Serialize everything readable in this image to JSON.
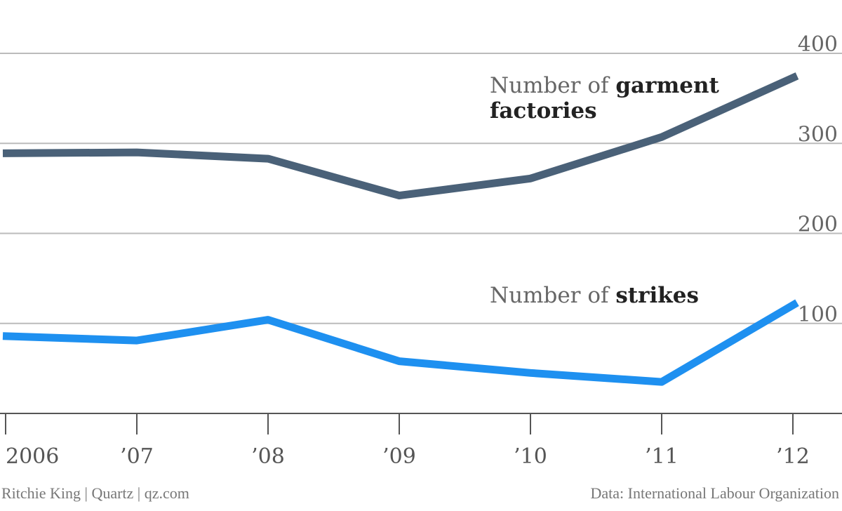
{
  "chart_data": {
    "type": "line",
    "x": [
      "2006",
      "2007",
      "2008",
      "2009",
      "2010",
      "2011",
      "2012"
    ],
    "x_tick_labels": [
      "2006",
      "’07",
      "’08",
      "’09",
      "’10",
      "’11",
      "’12"
    ],
    "series": [
      {
        "name": "garment factories",
        "label_prefix": "Number of",
        "label_strong": "garment factories",
        "color": "#4a6178",
        "values": [
          289,
          290,
          283,
          242,
          261,
          307,
          375
        ]
      },
      {
        "name": "strikes",
        "label_prefix": "Number of",
        "label_strong": "strikes",
        "color": "#1e90f0",
        "values": [
          86,
          81,
          104,
          58,
          45,
          35,
          123
        ]
      }
    ],
    "ylim": [
      0,
      400
    ],
    "y_ticks": [
      100,
      200,
      300,
      400
    ],
    "grid": true,
    "title": "",
    "xlabel": "",
    "ylabel": ""
  },
  "labels": {
    "garment_prefix": "Number of",
    "garment_strong_1": "garment",
    "garment_strong_2": "factories",
    "strikes_prefix": "Number of",
    "strikes_strong": "strikes"
  },
  "footer": {
    "credit": "Ritchie King | Quartz | qz.com",
    "source": "Data: International Labour Organization"
  }
}
